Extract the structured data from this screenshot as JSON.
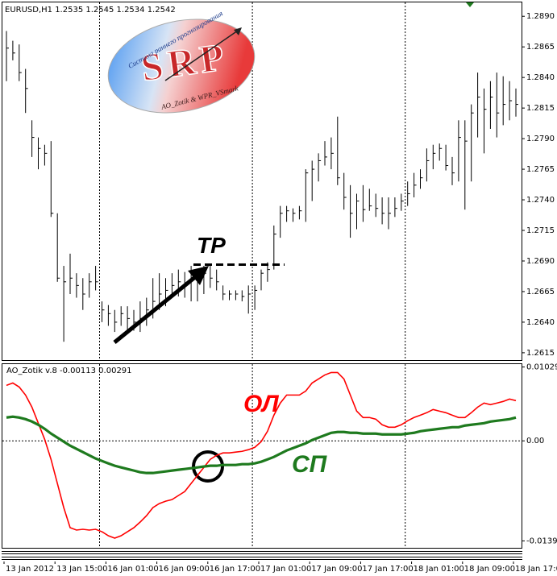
{
  "chart_data": [
    {
      "type": "ohlc",
      "title": "EURUSD,H1  1.2535 1.2545 1.2534 1.2542",
      "color": "#000000",
      "categories": [
        "13 Jan 2012",
        null,
        null,
        null,
        null,
        null,
        null,
        null,
        "13 Jan 15:00",
        null,
        null,
        null,
        null,
        null,
        null,
        null,
        "16 Jan 01:00",
        null,
        null,
        null,
        null,
        null,
        null,
        null,
        "16 Jan 09:00",
        null,
        null,
        null,
        null,
        null,
        null,
        null,
        "16 Jan 17:00",
        null,
        null,
        null,
        null,
        null,
        null,
        null,
        "17 Jan 01:00",
        null,
        null,
        null,
        null,
        null,
        null,
        null,
        "17 Jan 09:00",
        null,
        null,
        null,
        null,
        null,
        null,
        null,
        "17 Jan 17:00",
        null,
        null,
        null,
        null,
        null,
        null,
        null,
        "18 Jan 01:00",
        null,
        null,
        null,
        null,
        null,
        null,
        null,
        "18 Jan 09:00",
        null,
        null,
        null,
        null,
        null,
        null,
        null,
        "18 Jan 17:00"
      ],
      "high": [
        1.2878,
        1.287,
        1.2867,
        1.2847,
        1.2805,
        1.2791,
        1.2785,
        1.2788,
        1.2729,
        1.2686,
        1.2696,
        1.268,
        1.2676,
        1.268,
        1.2686,
        1.2657,
        1.2654,
        1.265,
        1.2653,
        1.2653,
        1.265,
        1.2657,
        1.266,
        1.2676,
        1.268,
        1.2676,
        1.268,
        1.2683,
        1.2681,
        1.2686,
        1.2676,
        1.2686,
        1.2686,
        1.2683,
        1.267,
        1.2666,
        1.2666,
        1.2666,
        1.267,
        1.267,
        1.2683,
        1.2689,
        1.2719,
        1.2735,
        1.2735,
        1.2733,
        1.2735,
        1.2765,
        1.2772,
        1.2778,
        1.2788,
        1.2791,
        1.2808,
        1.2762,
        1.2752,
        1.2745,
        1.2752,
        1.2749,
        1.2745,
        1.2742,
        1.2742,
        1.2742,
        1.2745,
        1.2755,
        1.2762,
        1.2765,
        1.2782,
        1.2785,
        1.2786,
        1.2785,
        1.2775,
        1.2805,
        1.2805,
        1.2818,
        1.2844,
        1.2831,
        1.2837,
        1.2844,
        1.2841,
        1.2837,
        1.2831
      ],
      "low": [
        1.2837,
        1.2854,
        1.2837,
        1.2811,
        1.2775,
        1.2765,
        1.2768,
        1.2726,
        1.2673,
        1.2624,
        1.2663,
        1.266,
        1.265,
        1.266,
        1.2666,
        1.264,
        1.2637,
        1.2632,
        1.2637,
        1.2633,
        1.2633,
        1.2632,
        1.2637,
        1.2643,
        1.265,
        1.2653,
        1.266,
        1.2661,
        1.266,
        1.2657,
        1.2657,
        1.2663,
        1.2668,
        1.2666,
        1.2658,
        1.2658,
        1.2658,
        1.2657,
        1.2647,
        1.265,
        1.2666,
        1.2673,
        1.2683,
        1.2709,
        1.2722,
        1.2722,
        1.2724,
        1.2722,
        1.2739,
        1.2755,
        1.2768,
        1.2765,
        1.2752,
        1.2732,
        1.2709,
        1.2716,
        1.2722,
        1.2731,
        1.2726,
        1.272,
        1.2716,
        1.2726,
        1.2731,
        1.2735,
        1.2742,
        1.2749,
        1.2755,
        1.2765,
        1.2772,
        1.2764,
        1.2752,
        1.2755,
        1.2732,
        1.2755,
        1.2791,
        1.2778,
        1.2798,
        1.2791,
        1.2801,
        1.2805,
        1.2808
      ],
      "close": [
        1.2864,
        1.286,
        1.2844,
        1.2831,
        1.2791,
        1.2782,
        1.2778,
        1.2729,
        1.2676,
        1.2673,
        1.2676,
        1.267,
        1.2663,
        1.2673,
        1.2673,
        1.265,
        1.2647,
        1.264,
        1.2647,
        1.2643,
        1.264,
        1.2643,
        1.265,
        1.2657,
        1.2663,
        1.2666,
        1.267,
        1.2673,
        1.267,
        1.2676,
        1.2673,
        1.268,
        1.2676,
        1.2673,
        1.2663,
        1.2663,
        1.2663,
        1.2661,
        1.2663,
        1.2666,
        1.268,
        1.2683,
        1.2712,
        1.2729,
        1.2731,
        1.2729,
        1.2731,
        1.2762,
        1.2765,
        1.2772,
        1.2775,
        1.2778,
        1.2758,
        1.2742,
        1.2729,
        1.2739,
        1.2732,
        1.2735,
        1.2733,
        1.2729,
        1.2729,
        1.2733,
        1.2739,
        1.2745,
        1.2752,
        1.2758,
        1.2772,
        1.2778,
        1.2782,
        1.2768,
        1.2762,
        1.2791,
        1.2788,
        1.2811,
        1.2824,
        1.2814,
        1.2824,
        1.2811,
        1.2818,
        1.2821,
        1.2818
      ],
      "ylim": [
        1.2609,
        1.2902
      ],
      "yticks": [
        {
          "value": 1.289,
          "label": "1.2890"
        },
        1.2865,
        {
          "value": 1.284,
          "label": "1.2840"
        },
        1.2815,
        {
          "value": 1.279,
          "label": "1.2790"
        },
        1.2765,
        {
          "value": 1.274,
          "label": "1.2740"
        },
        1.2715,
        {
          "value": 1.269,
          "label": "1.2690"
        },
        1.2665,
        {
          "value": 1.264,
          "label": "1.2640"
        },
        1.2615
      ],
      "annotations": [
        {
          "text": "TP",
          "value": 1.2687
        }
      ]
    },
    {
      "type": "line",
      "title": "AO_Zotik v.8 -0.00113 0.00291",
      "series": [
        {
          "name": "ОЛ",
          "color": "#ff0000",
          "values": [
            0.00773,
            0.00806,
            0.0075,
            0.00638,
            0.0047,
            0.00246,
            0.00022,
            -0.00258,
            -0.00594,
            -0.0093,
            -0.0121,
            -0.01243,
            -0.01232,
            -0.01243,
            -0.01232,
            -0.01266,
            -0.01322,
            -0.01355,
            -0.01322,
            -0.01266,
            -0.0121,
            -0.01131,
            -0.01042,
            -0.0093,
            -0.00874,
            -0.0084,
            -0.00818,
            -0.00762,
            -0.00706,
            -0.00594,
            -0.00482,
            -0.0037,
            -0.00258,
            -0.00202,
            -0.00168,
            -0.00168,
            -0.00157,
            -0.00146,
            -0.00123,
            -0.0009,
            -0.00011,
            0.00134,
            0.00358,
            0.00526,
            0.00638,
            0.00638,
            0.00638,
            0.00694,
            0.00806,
            0.00862,
            0.00918,
            0.00952,
            0.00952,
            0.00862,
            0.00638,
            0.00414,
            0.00325,
            0.00325,
            0.00302,
            0.00224,
            0.0019,
            0.0019,
            0.00224,
            0.0028,
            0.00325,
            0.00358,
            0.00392,
            0.00437,
            0.00414,
            0.00392,
            0.00358,
            0.00325,
            0.00325,
            0.00392,
            0.0047,
            0.00526,
            0.00504,
            0.00526,
            0.00549,
            0.00582,
            0.0056
          ]
        },
        {
          "name": "СП",
          "color": "#1e7a1e",
          "values": [
            0.00325,
            0.00336,
            0.00325,
            0.00302,
            0.00269,
            0.00224,
            0.00168,
            0.00101,
            0.00045,
            -0.00011,
            -0.00067,
            -0.00112,
            -0.00157,
            -0.00202,
            -0.00246,
            -0.0028,
            -0.00314,
            -0.00347,
            -0.0037,
            -0.00392,
            -0.00414,
            -0.00437,
            -0.00448,
            -0.00448,
            -0.00437,
            -0.00426,
            -0.00414,
            -0.00403,
            -0.00392,
            -0.00381,
            -0.0037,
            -0.00358,
            -0.00347,
            -0.00347,
            -0.00336,
            -0.00336,
            -0.00336,
            -0.00325,
            -0.00325,
            -0.00314,
            -0.00291,
            -0.00258,
            -0.00224,
            -0.00179,
            -0.00134,
            -0.00101,
            -0.00067,
            -0.00034,
            0.00011,
            0.00045,
            0.00078,
            0.00112,
            0.00123,
            0.00123,
            0.00112,
            0.00112,
            0.00101,
            0.00101,
            0.00101,
            0.0009,
            0.0009,
            0.0009,
            0.0009,
            0.00101,
            0.00112,
            0.00134,
            0.00146,
            0.00157,
            0.00168,
            0.00179,
            0.0019,
            0.0019,
            0.00213,
            0.00224,
            0.00235,
            0.00246,
            0.00269,
            0.0028,
            0.00291,
            0.00302,
            0.00325
          ]
        }
      ],
      "ylim": [
        -0.0149,
        0.0108
      ],
      "yticks": [
        0.01029,
        {
          "value": 0,
          "label": "0.00"
        },
        -0.01394
      ]
    }
  ],
  "logo": {
    "title": "SRP",
    "subtitle": "Система раннего прогнозирования",
    "footer": "AO_Zotik & WPR_VSmark"
  }
}
